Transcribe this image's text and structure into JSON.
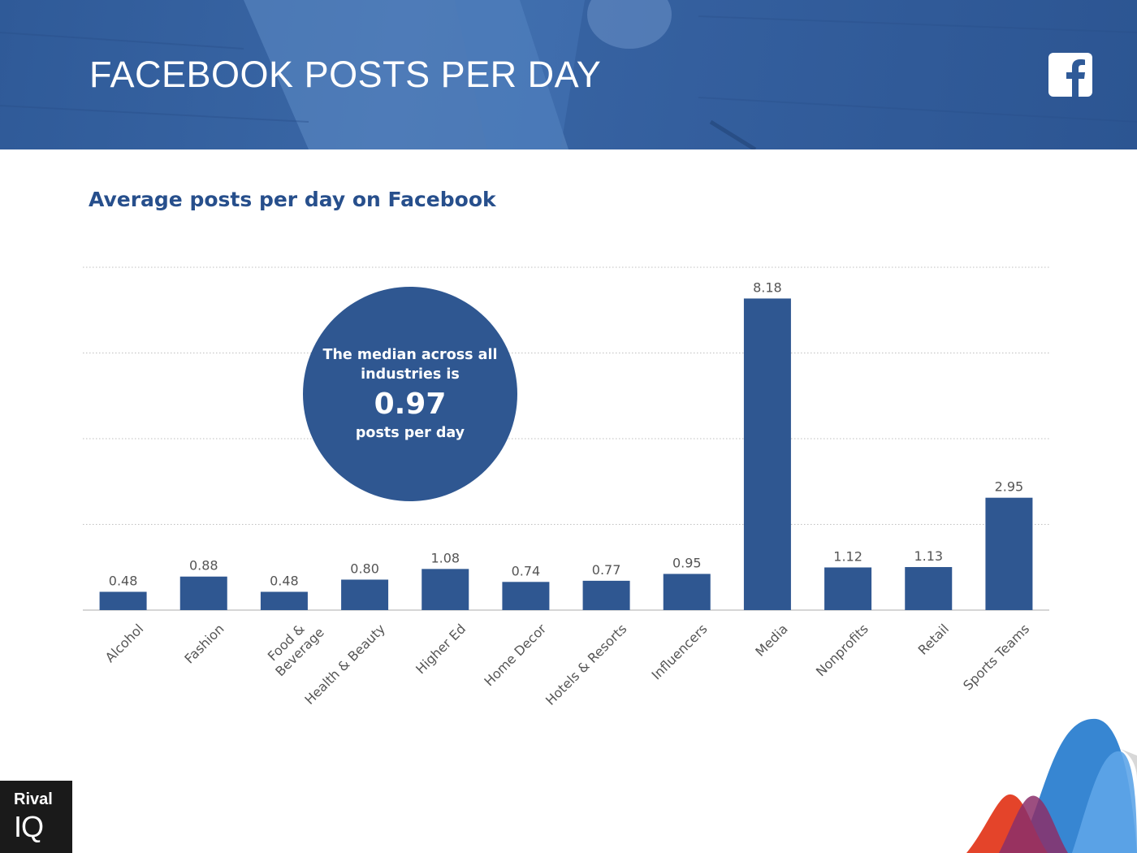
{
  "header": {
    "title": "FACEBOOK POSTS PER DAY",
    "logo_icon": "facebook-f-icon"
  },
  "colors": {
    "bar": "#2f5791",
    "title": "#274f8c",
    "header": "#3a67a6"
  },
  "callout": {
    "line1": "The median across all industries is",
    "value": "0.97",
    "line2": "posts per day"
  },
  "brand": {
    "line1": "Rival",
    "line2": "IQ"
  },
  "chart_data": {
    "type": "bar",
    "title": "Average posts per day on Facebook",
    "categories": [
      "Alcohol",
      "Fashion",
      "Food & Beverage",
      "Health & Beauty",
      "Higher Ed",
      "Home Decor",
      "Hotels & Resorts",
      "Influencers",
      "Media",
      "Nonprofits",
      "Retail",
      "Sports Teams"
    ],
    "values": [
      0.48,
      0.88,
      0.48,
      0.8,
      1.08,
      0.74,
      0.77,
      0.95,
      8.18,
      1.12,
      1.13,
      2.95
    ],
    "data_labels": [
      "0.48",
      "0.88",
      "0.48",
      "0.80",
      "1.08",
      "0.74",
      "0.77",
      "0.95",
      "8.18",
      "1.12",
      "1.13",
      "2.95"
    ],
    "ylim": [
      0,
      9
    ],
    "grid": true,
    "xlabel": "",
    "ylabel": ""
  }
}
